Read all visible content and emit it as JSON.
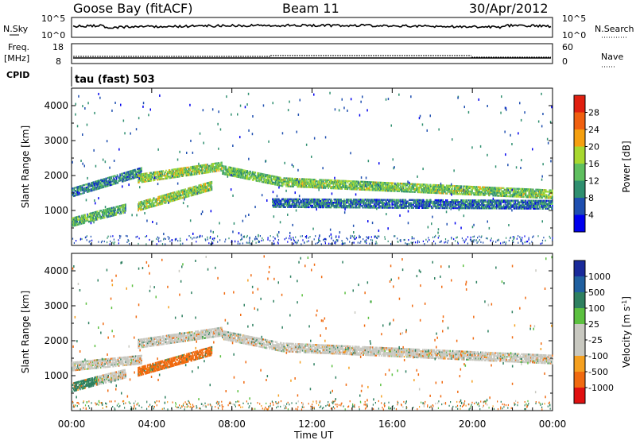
{
  "header": {
    "station": "Goose Bay (fitACF)",
    "beam": "Beam 11",
    "date": "30/Apr/2012"
  },
  "noise_panel": {
    "left_label": "N.Sky",
    "left_ticks": [
      "10^5",
      "10^0"
    ],
    "right_label": "N.Search",
    "right_ticks": [
      "10^5",
      "10^0"
    ]
  },
  "freq_panel": {
    "left_label_1": "Freq.",
    "left_label_2": "[MHz]",
    "left_ticks": [
      "18",
      "8"
    ],
    "right_label": "Nave",
    "right_ticks": [
      "60",
      "0"
    ]
  },
  "cpid_panel": {
    "label": "CPID",
    "value": "tau (fast) 503"
  },
  "colors": {
    "power_scale": [
      "#0000ee",
      "#1f4fb0",
      "#2f8f6f",
      "#5fbf5f",
      "#a8d82f",
      "#f5a010",
      "#f06010",
      "#e02010"
    ],
    "velocity_scale": [
      "#e01010",
      "#f06a10",
      "#f5a020",
      "#c8c8c0",
      "#c8c8c0",
      "#5cc040",
      "#2e8060",
      "#2060a0",
      "#1a2a9a"
    ]
  },
  "chart_data": [
    {
      "type": "heatmap",
      "quantity": "power",
      "xlabel": "",
      "ylabel": "Slant Range [km]",
      "yticks": [
        "1000",
        "2000",
        "3000",
        "4000"
      ],
      "ylim": [
        0,
        4500
      ],
      "xlim": [
        0,
        24
      ],
      "colorbar": {
        "label": "Power [dB]",
        "ticks": [
          "4",
          "8",
          "12",
          "16",
          "20",
          "24",
          "28"
        ],
        "range": [
          0,
          32
        ]
      },
      "bands": [
        {
          "t_start": 0.0,
          "t_end": 1.3,
          "range_start": 650,
          "range_end": 650,
          "range_start_end": 850,
          "range_end_end": 850,
          "power": 13
        },
        {
          "t_start": 1.3,
          "t_end": 2.7,
          "range_start": 850,
          "range_end": 850,
          "range_start_end": 1050,
          "range_end_end": 1050,
          "power": 12
        },
        {
          "t_start": 0.0,
          "t_end": 3.5,
          "range_start": 1500,
          "range_end": 1500,
          "range_start_end": 2100,
          "range_end_end": 2100,
          "power": 9
        },
        {
          "t_start": 3.3,
          "t_end": 7.5,
          "range_start": 1900,
          "range_end": 1900,
          "range_start_end": 2250,
          "range_end_end": 2250,
          "power": 16
        },
        {
          "t_start": 3.3,
          "t_end": 7.0,
          "range_start": 1100,
          "range_end": 1100,
          "range_start_end": 1700,
          "range_end_end": 1700,
          "power": 16
        },
        {
          "t_start": 7.5,
          "t_end": 10.5,
          "range_start": 2150,
          "range_end": 2150,
          "range_start_end": 1800,
          "range_end_end": 1800,
          "power": 14
        },
        {
          "t_start": 10.5,
          "t_end": 24.0,
          "range_start": 1800,
          "range_end": 1800,
          "range_start_end": 1450,
          "range_end_end": 1450,
          "power": 15
        },
        {
          "t_start": 10.0,
          "t_end": 24.0,
          "range_start": 1200,
          "range_end": 1200,
          "range_start_end": 1150,
          "range_end_end": 1150,
          "power": 8
        }
      ]
    },
    {
      "type": "heatmap",
      "quantity": "velocity",
      "xlabel": "Time UT",
      "ylabel": "Slant Range [km]",
      "xticks": [
        "00:00",
        "04:00",
        "08:00",
        "12:00",
        "16:00",
        "20:00",
        "00:00"
      ],
      "yticks": [
        "1000",
        "2000",
        "3000",
        "4000"
      ],
      "ylim": [
        0,
        4500
      ],
      "xlim": [
        0,
        24
      ],
      "colorbar": {
        "label": "Velocity [m s^-1]",
        "ticks": [
          "1000",
          "500",
          "100",
          "25",
          "-25",
          "-100",
          "-500",
          "-1000"
        ]
      },
      "bands": [
        {
          "t_start": 0.0,
          "t_end": 1.3,
          "range_start": 650,
          "range_end": 650,
          "range_start_end": 850,
          "range_end_end": 850,
          "velocity": 150
        },
        {
          "t_start": 1.3,
          "t_end": 2.7,
          "range_start": 850,
          "range_end": 850,
          "range_start_end": 1050,
          "range_end_end": 1050,
          "velocity": 0
        },
        {
          "t_start": 0.0,
          "t_end": 3.5,
          "range_start": 1250,
          "range_end": 1250,
          "range_start_end": 1450,
          "range_end_end": 1450,
          "velocity": 0
        },
        {
          "t_start": 3.3,
          "t_end": 7.5,
          "range_start": 1900,
          "range_end": 1900,
          "range_start_end": 2250,
          "range_end_end": 2250,
          "velocity": 0
        },
        {
          "t_start": 3.3,
          "t_end": 7.0,
          "range_start": 1100,
          "range_end": 1100,
          "range_start_end": 1700,
          "range_end_end": 1700,
          "velocity": -150
        },
        {
          "t_start": 7.5,
          "t_end": 10.5,
          "range_start": 2150,
          "range_end": 2150,
          "range_start_end": 1800,
          "range_end_end": 1800,
          "velocity": 0
        },
        {
          "t_start": 10.5,
          "t_end": 24.0,
          "range_start": 1800,
          "range_end": 1800,
          "range_start_end": 1450,
          "range_end_end": 1450,
          "velocity": 0
        }
      ]
    }
  ]
}
